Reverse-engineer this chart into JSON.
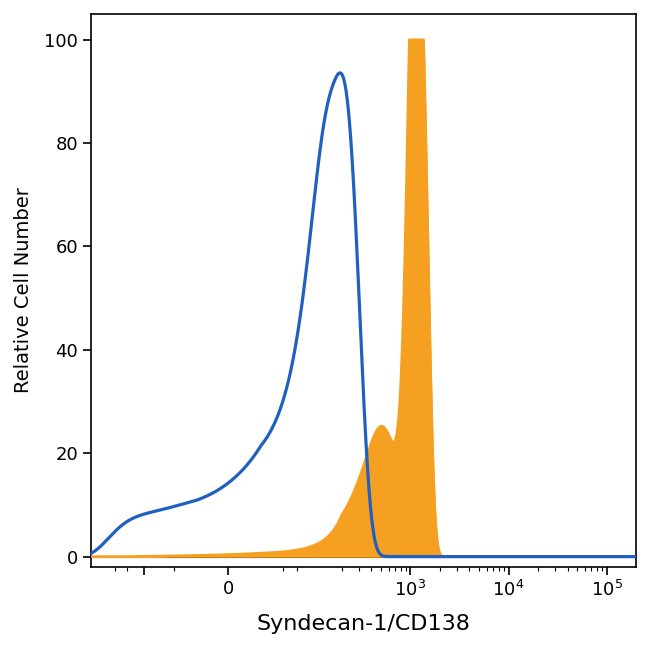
{
  "title": "",
  "xlabel": "Syndecan-1/CD138",
  "ylabel": "Relative Cell Number",
  "ylim": [
    -2,
    105
  ],
  "yticks": [
    0,
    20,
    40,
    60,
    80,
    100
  ],
  "blue_color": "#2060C0",
  "orange_color": "#F5A020",
  "blue_linewidth": 2.3,
  "orange_linewidth": 1.8,
  "xlabel_fontsize": 16,
  "ylabel_fontsize": 14,
  "tick_fontsize": 13,
  "figsize": [
    6.5,
    6.48
  ],
  "dpi": 100,
  "linthresh": 30,
  "linscale": 0.3,
  "xlim_left": -350,
  "xlim_right": 200000
}
